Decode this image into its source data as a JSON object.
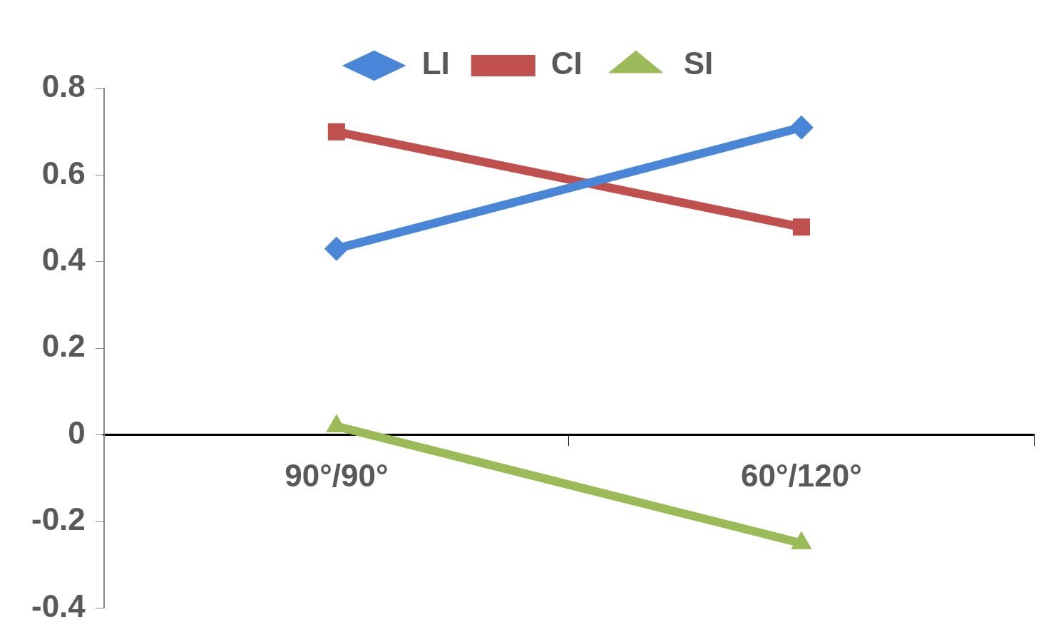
{
  "chart_data": {
    "type": "line",
    "categories": [
      "90°/90°",
      "60°/120°"
    ],
    "series": [
      {
        "name": "LI",
        "color": "#4a86d8",
        "marker": "diamond",
        "values": [
          0.43,
          0.71
        ]
      },
      {
        "name": "CI",
        "color": "#c0504d",
        "marker": "square",
        "values": [
          0.7,
          0.48
        ]
      },
      {
        "name": "SI",
        "color": "#9bbb59",
        "marker": "triangle",
        "values": [
          0.02,
          -0.25
        ]
      }
    ],
    "ylim": [
      -0.4,
      0.8
    ],
    "yticks": [
      -0.4,
      -0.2,
      0,
      0.2,
      0.4,
      0.6,
      0.8
    ],
    "grid": false,
    "legend": "top"
  }
}
